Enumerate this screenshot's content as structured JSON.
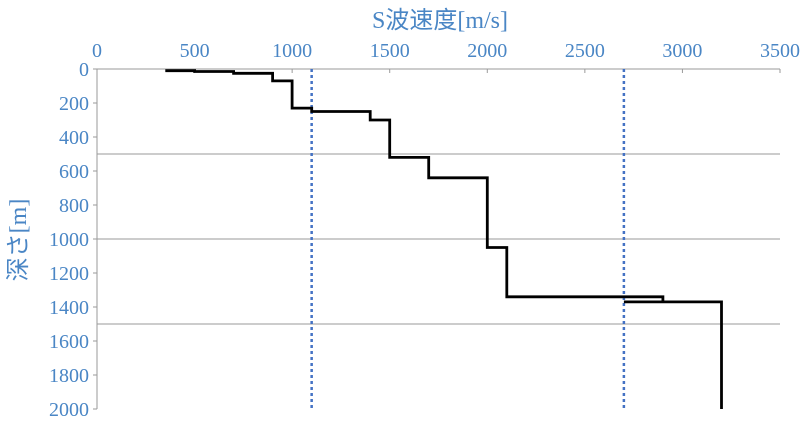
{
  "chart_data": {
    "type": "line",
    "xlabel": "S波速度[m/s]",
    "ylabel": "深さ[m]",
    "xlim": [
      0,
      3500
    ],
    "ylim": [
      0,
      2000
    ],
    "x_ticks": [
      "0",
      "500",
      "1000",
      "1500",
      "2000",
      "2500",
      "3000",
      "3500"
    ],
    "y_ticks": [
      "0",
      "200",
      "400",
      "600",
      "800",
      "1000",
      "1200",
      "1400",
      "1600",
      "1800",
      "2000"
    ],
    "x_axis_position": "top",
    "y_axis_inverted": true,
    "grid": "horizontal-major",
    "series": [
      {
        "color": "#000000",
        "style": "solid-step",
        "points": [
          {
            "x": 350,
            "y": 10
          },
          {
            "x": 500,
            "y": 10
          },
          {
            "x": 500,
            "y": 15
          },
          {
            "x": 700,
            "y": 15
          },
          {
            "x": 700,
            "y": 25
          },
          {
            "x": 900,
            "y": 25
          },
          {
            "x": 900,
            "y": 70
          },
          {
            "x": 1000,
            "y": 70
          },
          {
            "x": 1000,
            "y": 230
          },
          {
            "x": 1100,
            "y": 230
          },
          {
            "x": 1100,
            "y": 250
          },
          {
            "x": 1400,
            "y": 250
          },
          {
            "x": 1400,
            "y": 300
          },
          {
            "x": 1500,
            "y": 300
          },
          {
            "x": 1500,
            "y": 520
          },
          {
            "x": 1700,
            "y": 520
          },
          {
            "x": 1700,
            "y": 640
          },
          {
            "x": 2000,
            "y": 640
          },
          {
            "x": 2000,
            "y": 1050
          },
          {
            "x": 2100,
            "y": 1050
          },
          {
            "x": 2100,
            "y": 1340
          },
          {
            "x": 2900,
            "y": 1340
          },
          {
            "x": 2900,
            "y": 1370
          },
          {
            "x": 2700,
            "y": 1370
          },
          {
            "x": 3200,
            "y": 1370
          },
          {
            "x": 3200,
            "y": 2000
          }
        ]
      }
    ],
    "reference_lines": [
      {
        "x": 1100,
        "color": "#4472c4",
        "style": "dotted"
      },
      {
        "x": 2700,
        "color": "#4472c4",
        "style": "dotted"
      }
    ]
  }
}
